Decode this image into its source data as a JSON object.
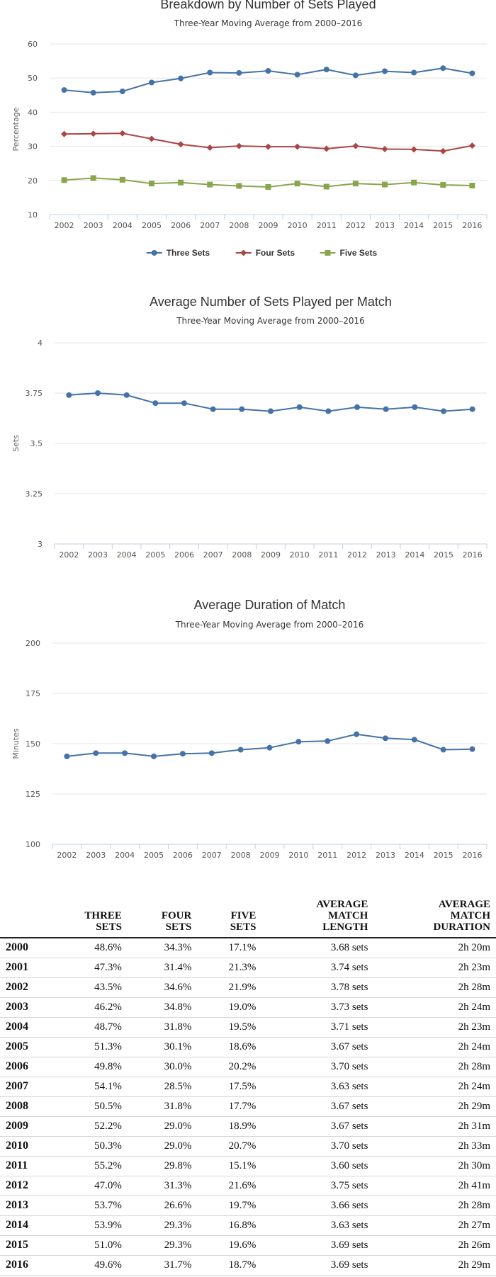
{
  "chart_data": [
    {
      "type": "line",
      "title": "Breakdown by Number of Sets Played",
      "subtitle": "Three-Year Moving Average from 2000–2016",
      "ylabel": "Percentage",
      "ylim": [
        10,
        60
      ],
      "yticks": [
        10,
        20,
        30,
        40,
        50,
        60
      ],
      "grid": true,
      "legend": "bottom-center",
      "x": [
        "2002",
        "2003",
        "2004",
        "2005",
        "2006",
        "2007",
        "2008",
        "2009",
        "2010",
        "2011",
        "2012",
        "2013",
        "2014",
        "2015",
        "2016"
      ],
      "series": [
        {
          "name": "Three Sets",
          "color": "#4572a7",
          "marker": "circle",
          "values": [
            46.5,
            45.7,
            46.1,
            48.7,
            49.9,
            51.6,
            51.5,
            52.1,
            51.0,
            52.5,
            50.8,
            52.0,
            51.6,
            52.9,
            51.4
          ]
        },
        {
          "name": "Four Sets",
          "color": "#aa4643",
          "marker": "diamond",
          "values": [
            33.6,
            33.7,
            33.8,
            32.2,
            30.6,
            29.6,
            30.1,
            29.9,
            29.9,
            29.3,
            30.1,
            29.2,
            29.1,
            28.6,
            30.2
          ]
        },
        {
          "name": "Five Sets",
          "color": "#89a54e",
          "marker": "square",
          "values": [
            20.1,
            20.7,
            20.2,
            19.1,
            19.4,
            18.8,
            18.4,
            18.1,
            19.1,
            18.2,
            19.1,
            18.8,
            19.4,
            18.7,
            18.5
          ]
        }
      ]
    },
    {
      "type": "line",
      "title": "Average Number of Sets Played per Match",
      "subtitle": "Three-Year Moving Average from 2000–2016",
      "ylabel": "Sets",
      "ylim": [
        3,
        4
      ],
      "yticks": [
        3,
        3.25,
        3.5,
        3.75,
        4
      ],
      "grid": true,
      "x": [
        "2002",
        "2003",
        "2004",
        "2005",
        "2006",
        "2007",
        "2008",
        "2009",
        "2010",
        "2011",
        "2012",
        "2013",
        "2014",
        "2015",
        "2016"
      ],
      "series": [
        {
          "color": "#4572a7",
          "marker": "circle",
          "values": [
            3.74,
            3.75,
            3.74,
            3.7,
            3.7,
            3.67,
            3.67,
            3.66,
            3.68,
            3.66,
            3.68,
            3.67,
            3.68,
            3.66,
            3.67
          ]
        }
      ]
    },
    {
      "type": "line",
      "title": "Average Duration of Match",
      "subtitle": "Three-Year Moving Average from 2000–2016",
      "ylabel": "Minutes",
      "ylim": [
        100,
        200
      ],
      "yticks": [
        100,
        125,
        150,
        175,
        200
      ],
      "grid": true,
      "x": [
        "2002",
        "2003",
        "2004",
        "2005",
        "2006",
        "2007",
        "2008",
        "2009",
        "2010",
        "2011",
        "2012",
        "2013",
        "2014",
        "2015",
        "2016"
      ],
      "series": [
        {
          "color": "#4572a7",
          "marker": "circle",
          "values": [
            143.7,
            145.3,
            145.3,
            143.7,
            145.0,
            145.3,
            147.0,
            148.0,
            151.0,
            151.3,
            154.7,
            152.7,
            152.0,
            147.0,
            147.3
          ]
        }
      ]
    }
  ],
  "table": {
    "headers": [
      "",
      "THREE\nSETS",
      "FOUR\nSETS",
      "FIVE\nSETS",
      "AVERAGE\nMATCH\nLENGTH",
      "AVERAGE\nMATCH\nDURATION"
    ],
    "rows": [
      [
        "2000",
        "48.6%",
        "34.3%",
        "17.1%",
        "3.68 sets",
        "2h 20m"
      ],
      [
        "2001",
        "47.3%",
        "31.4%",
        "21.3%",
        "3.74 sets",
        "2h 23m"
      ],
      [
        "2002",
        "43.5%",
        "34.6%",
        "21.9%",
        "3.78 sets",
        "2h 28m"
      ],
      [
        "2003",
        "46.2%",
        "34.8%",
        "19.0%",
        "3.73 sets",
        "2h 24m"
      ],
      [
        "2004",
        "48.7%",
        "31.8%",
        "19.5%",
        "3.71 sets",
        "2h 23m"
      ],
      [
        "2005",
        "51.3%",
        "30.1%",
        "18.6%",
        "3.67 sets",
        "2h 24m"
      ],
      [
        "2006",
        "49.8%",
        "30.0%",
        "20.2%",
        "3.70 sets",
        "2h 28m"
      ],
      [
        "2007",
        "54.1%",
        "28.5%",
        "17.5%",
        "3.63 sets",
        "2h 24m"
      ],
      [
        "2008",
        "50.5%",
        "31.8%",
        "17.7%",
        "3.67 sets",
        "2h 29m"
      ],
      [
        "2009",
        "52.2%",
        "29.0%",
        "18.9%",
        "3.67 sets",
        "2h 31m"
      ],
      [
        "2010",
        "50.3%",
        "29.0%",
        "20.7%",
        "3.70 sets",
        "2h 33m"
      ],
      [
        "2011",
        "55.2%",
        "29.8%",
        "15.1%",
        "3.60 sets",
        "2h 30m"
      ],
      [
        "2012",
        "47.0%",
        "31.3%",
        "21.6%",
        "3.75 sets",
        "2h 41m"
      ],
      [
        "2013",
        "53.7%",
        "26.6%",
        "19.7%",
        "3.66 sets",
        "2h 28m"
      ],
      [
        "2014",
        "53.9%",
        "29.3%",
        "16.8%",
        "3.63 sets",
        "2h 27m"
      ],
      [
        "2015",
        "51.0%",
        "29.3%",
        "19.6%",
        "3.69 sets",
        "2h 26m"
      ],
      [
        "2016",
        "49.6%",
        "31.7%",
        "18.7%",
        "3.69 sets",
        "2h 29m"
      ]
    ]
  }
}
